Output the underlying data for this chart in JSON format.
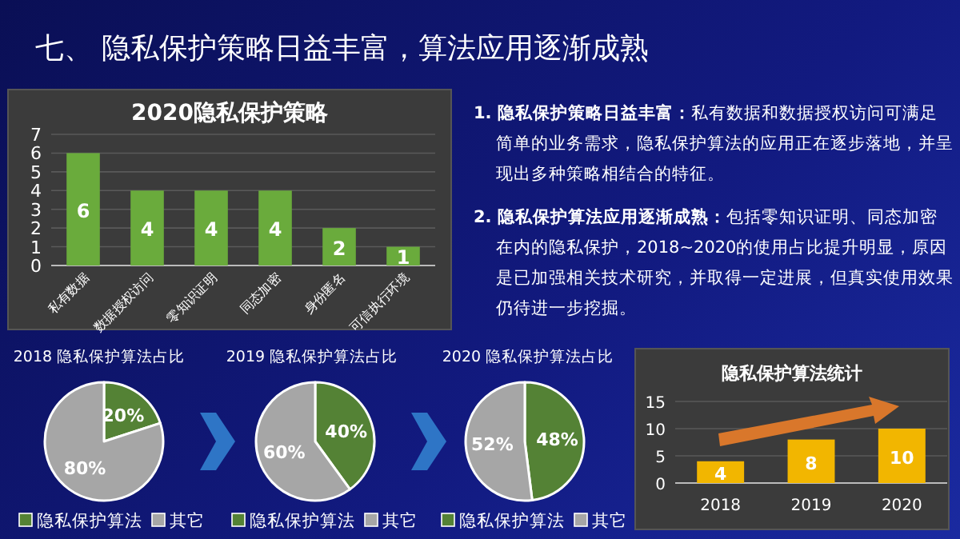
{
  "chart_data": [
    {
      "type": "other",
      "title": "七、 隐私保护策略日益丰富，算法应用逐渐成熟",
      "annotations": [
        "1. 隐私保护策略日益丰富：私有数据和数据授权访问可满足简单的业务需求，隐私保护算法的应用正在逐步落地，并呈现出多种策略相结合的特征。",
        "2. 隐私保护算法应用逐渐成熟：包括零知识证明、同态加密在内的隐私保护，2018~2020的使用占比提升明显，原因是已加强相关技术研究，并取得一定进展，但真实使用效果仍待进一步挖掘。"
      ]
    },
    {
      "type": "bar",
      "title": "2020隐私保护策略",
      "categories": [
        "私有数据",
        "数据授权访问",
        "零知识证明",
        "同态加密",
        "身份匿名",
        "可信执行环境"
      ],
      "values": [
        6,
        4,
        4,
        4,
        2,
        1
      ],
      "color": "#6aab3c",
      "ylim": [
        0,
        7
      ],
      "yticks": [
        0,
        1,
        2,
        3,
        4,
        5,
        6,
        7
      ],
      "grid": "y",
      "data_labels": true
    },
    {
      "type": "pie",
      "title": "2018 隐私保护算法占比",
      "categories": [
        "隐私保护算法",
        "其它"
      ],
      "values": [
        20,
        80
      ],
      "value_labels": [
        "20%",
        "80%"
      ],
      "colors": [
        "#548235",
        "#a6a6a6"
      ],
      "legend": "bottom"
    },
    {
      "type": "pie",
      "title": "2019 隐私保护算法占比",
      "categories": [
        "隐私保护算法",
        "其它"
      ],
      "values": [
        40,
        60
      ],
      "value_labels": [
        "40%",
        "60%"
      ],
      "colors": [
        "#548235",
        "#a6a6a6"
      ],
      "legend": "bottom"
    },
    {
      "type": "pie",
      "title": "2020 隐私保护算法占比",
      "categories": [
        "隐私保护算法",
        "其它"
      ],
      "values": [
        48,
        52
      ],
      "value_labels": [
        "48%",
        "52%"
      ],
      "colors": [
        "#548235",
        "#a6a6a6"
      ],
      "legend": "bottom"
    },
    {
      "type": "bar",
      "title": "隐私保护算法统计",
      "categories": [
        "2018",
        "2019",
        "2020"
      ],
      "values": [
        4,
        8,
        10
      ],
      "color": "#f2b600",
      "ylim": [
        0,
        15
      ],
      "yticks": [
        0,
        5,
        10,
        15
      ],
      "grid": "y",
      "data_labels": true
    }
  ]
}
